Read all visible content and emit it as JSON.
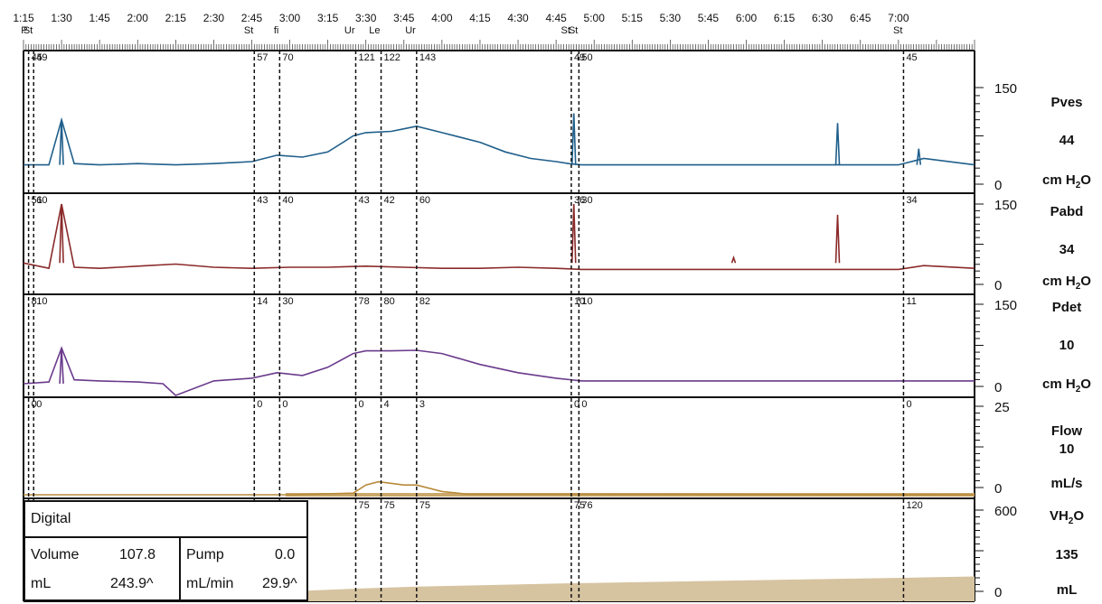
{
  "chart_data": {
    "type": "line",
    "x_axis": {
      "unit": "time (h:mm)",
      "range": [
        "1:15",
        "7:30"
      ],
      "tick_labels": [
        "1:15",
        "1:30",
        "1:45",
        "2:00",
        "2:15",
        "2:30",
        "2:45",
        "3:00",
        "3:15",
        "3:30",
        "3:45",
        "4:00",
        "4:15",
        "4:30",
        "4:45",
        "5:00",
        "5:15",
        "5:30",
        "5:45",
        "6:00",
        "6:15",
        "6:30",
        "6:45",
        "7:00"
      ]
    },
    "events": [
      {
        "label": "P",
        "time": "1:17",
        "values": {
          "pves": "45",
          "pabd": "51",
          "pdet": "8",
          "flow": "0",
          "vh2o": ""
        }
      },
      {
        "label": "St",
        "time": "1:19",
        "values": {
          "pves": "49",
          "pabd": "60",
          "pdet": "10",
          "flow": "0",
          "vh2o": ""
        }
      },
      {
        "label": "St",
        "time": "2:46",
        "values": {
          "pves": "57",
          "pabd": "43",
          "pdet": "14",
          "flow": "0",
          "vh2o": ""
        }
      },
      {
        "label": "fi",
        "time": "2:56",
        "values": {
          "pves": "70",
          "pabd": "40",
          "pdet": "30",
          "flow": "0",
          "vh2o": ""
        }
      },
      {
        "label": "Ur",
        "time": "3:26",
        "values": {
          "pves": "121",
          "pabd": "43",
          "pdet": "78",
          "flow": "0",
          "vh2o": "75"
        }
      },
      {
        "label": "Le",
        "time": "3:36",
        "values": {
          "pves": "122",
          "pabd": "42",
          "pdet": "80",
          "flow": "4",
          "vh2o": "75"
        }
      },
      {
        "label": "Ur",
        "time": "3:50",
        "values": {
          "pves": "143",
          "pabd": "60",
          "pdet": "82",
          "flow": "3",
          "vh2o": "75"
        }
      },
      {
        "label": "St",
        "time": "4:51",
        "values": {
          "pves": "49",
          "pabd": "36",
          "pdet": "10",
          "flow": "0",
          "vh2o": "75"
        }
      },
      {
        "label": "St",
        "time": "4:54",
        "values": {
          "pves": "50",
          "pabd": "30",
          "pdet": "10",
          "flow": "0",
          "vh2o": "76"
        }
      },
      {
        "label": "St",
        "time": "7:02",
        "values": {
          "pves": "45",
          "pabd": "34",
          "pdet": "11",
          "flow": "0",
          "vh2o": "120"
        }
      }
    ],
    "channels": [
      {
        "name": "Pves",
        "current": "44",
        "unit_main": "cm H",
        "unit_sub": "2",
        "unit_tail": "O",
        "range": [
          0,
          150
        ],
        "axis_max_label": "150",
        "axis_min_label": "0",
        "color": "#1f5f8b",
        "x": [
          "1:15",
          "1:25",
          "1:30",
          "1:35",
          "1:45",
          "2:00",
          "2:15",
          "2:30",
          "2:45",
          "2:55",
          "3:05",
          "3:15",
          "3:25",
          "3:30",
          "3:40",
          "3:45",
          "3:50",
          "4:00",
          "4:15",
          "4:25",
          "4:35",
          "4:45",
          "4:50",
          "4:55",
          "5:15",
          "5:45",
          "6:15",
          "6:35",
          "7:00",
          "7:10",
          "7:30"
        ],
        "y": [
          30,
          30,
          100,
          32,
          30,
          32,
          30,
          32,
          35,
          45,
          42,
          50,
          75,
          80,
          82,
          86,
          90,
          80,
          65,
          50,
          40,
          35,
          32,
          30,
          30,
          30,
          30,
          30,
          30,
          40,
          30
        ],
        "spikes": [
          {
            "time": "1:30",
            "value": 100
          },
          {
            "time": "4:52",
            "value": 110
          },
          {
            "time": "6:36",
            "value": 95
          },
          {
            "time": "7:08",
            "value": 55
          }
        ]
      },
      {
        "name": "Pabd",
        "current": "34",
        "unit_main": "cm H",
        "unit_sub": "2",
        "unit_tail": "O",
        "range": [
          0,
          150
        ],
        "axis_max_label": "150",
        "axis_min_label": "0",
        "color": "#8b2a2a",
        "x": [
          "1:15",
          "1:25",
          "1:30",
          "1:35",
          "1:45",
          "2:00",
          "2:15",
          "2:30",
          "2:45",
          "3:00",
          "3:15",
          "3:30",
          "3:45",
          "4:00",
          "4:15",
          "4:30",
          "4:45",
          "4:55",
          "5:15",
          "5:45",
          "6:15",
          "6:35",
          "7:00",
          "7:10",
          "7:30"
        ],
        "y": [
          40,
          30,
          150,
          32,
          30,
          34,
          38,
          32,
          30,
          32,
          32,
          34,
          32,
          30,
          30,
          32,
          30,
          28,
          28,
          28,
          28,
          28,
          28,
          35,
          30
        ],
        "spikes": [
          {
            "time": "1:30",
            "value": 150
          },
          {
            "time": "4:52",
            "value": 150
          },
          {
            "time": "6:36",
            "value": 130
          },
          {
            "time": "5:55",
            "value": 50
          }
        ]
      },
      {
        "name": "Pdet",
        "current": "10",
        "unit_main": "cm H",
        "unit_sub": "2",
        "unit_tail": "O",
        "range": [
          0,
          150
        ],
        "axis_max_label": "150",
        "axis_min_label": "0",
        "color": "#6a3a8c",
        "x": [
          "1:15",
          "1:25",
          "1:30",
          "1:35",
          "1:45",
          "2:00",
          "2:10",
          "2:15",
          "2:30",
          "2:45",
          "2:55",
          "3:05",
          "3:15",
          "3:25",
          "3:30",
          "3:40",
          "3:50",
          "4:00",
          "4:15",
          "4:30",
          "4:45",
          "4:55",
          "5:15",
          "5:45",
          "6:15",
          "6:45",
          "7:00",
          "7:30"
        ],
        "y": [
          5,
          8,
          70,
          12,
          10,
          8,
          5,
          -20,
          10,
          15,
          25,
          20,
          35,
          60,
          65,
          65,
          66,
          60,
          40,
          25,
          15,
          10,
          10,
          10,
          10,
          10,
          10,
          10
        ],
        "spikes": [
          {
            "time": "1:30",
            "value": 70
          }
        ]
      },
      {
        "name": "Flow",
        "current": "10",
        "unit_main": "mL/s",
        "unit_sub": "",
        "unit_tail": "",
        "range": [
          0,
          25
        ],
        "axis_max_label": "25",
        "axis_min_label": "0",
        "color": "#b88a3a",
        "x": [
          "1:15",
          "3:00",
          "3:25",
          "3:30",
          "3:35",
          "3:45",
          "3:50",
          "4:00",
          "4:10",
          "7:30"
        ],
        "y": [
          0,
          0,
          0.5,
          3,
          4,
          3,
          3,
          1,
          0.2,
          0
        ],
        "spikes": []
      },
      {
        "name": "VH",
        "name_sub": "2",
        "name_tail": "O",
        "current": "135",
        "unit_main": "mL",
        "unit_sub": "",
        "unit_tail": "",
        "range": [
          0,
          600
        ],
        "axis_max_label": "600",
        "axis_min_label": "0",
        "color": "#d6c3a0",
        "x": [
          "3:00",
          "3:26",
          "3:50",
          "4:51",
          "7:02",
          "7:30"
        ],
        "y": [
          0,
          20,
          35,
          60,
          100,
          110
        ],
        "spikes": []
      }
    ]
  },
  "digital": {
    "title": "Digital",
    "volume_label": "Volume",
    "volume_value": "107.8",
    "volume_unit": "mL",
    "volume_value2": "243.9^",
    "pump_label": "Pump",
    "pump_value": "0.0",
    "pump_unit": "mL/min",
    "pump_value2": "29.9^"
  }
}
